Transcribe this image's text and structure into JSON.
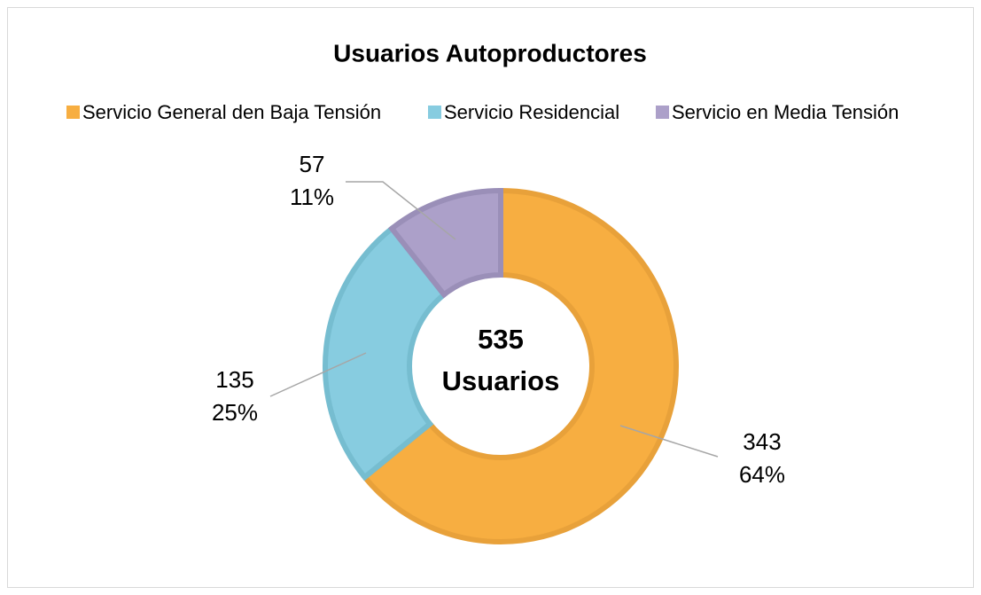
{
  "chart_data": {
    "type": "donut",
    "title": "Usuarios Autoproductores",
    "categories": [
      "Servicio General den Baja Tensión",
      "Servicio Residencial",
      "Servicio en Media Tensión"
    ],
    "values": [
      343,
      135,
      57
    ],
    "percentages": [
      64,
      25,
      11
    ],
    "percentage_labels": [
      "64%",
      "25%",
      "11%"
    ],
    "colors": [
      "#F7AE41",
      "#87CCE0",
      "#ACA0C9"
    ],
    "edge_colors": [
      "#E8A13A",
      "#76BDD0",
      "#9A8FB8"
    ],
    "total": 535,
    "total_label": "Usuarios",
    "legend": "top"
  }
}
